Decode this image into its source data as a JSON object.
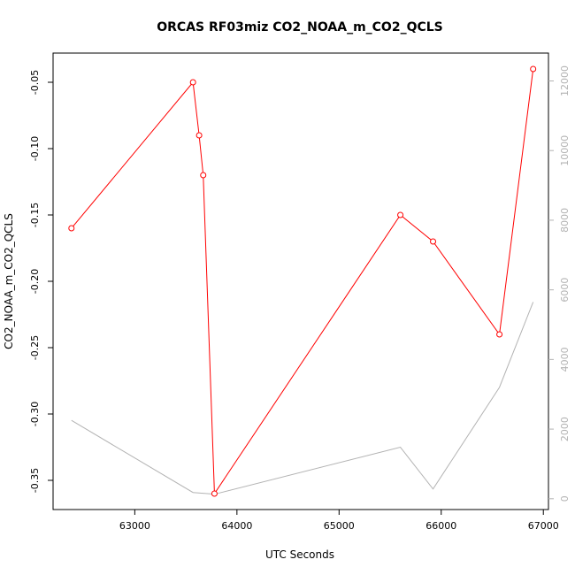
{
  "chart_data": {
    "type": "line",
    "title": "ORCAS RF03miz CO2_NOAA_m_CO2_QCLS",
    "xlabel": "UTC Seconds",
    "ylabel": "CO2_NOAA_m_CO2_QCLS",
    "xlim": [
      62200,
      67050
    ],
    "ylim": [
      -0.372,
      -0.028
    ],
    "y2lim": [
      -310,
      12800
    ],
    "x_ticks": [
      63000,
      64000,
      65000,
      66000,
      67000
    ],
    "y_ticks": [
      -0.35,
      -0.3,
      -0.25,
      -0.2,
      -0.15,
      -0.1,
      -0.05
    ],
    "y_tick_labels": [
      "-0.35",
      "-0.30",
      "-0.25",
      "-0.20",
      "-0.15",
      "-0.10",
      "-0.05"
    ],
    "y2_ticks": [
      0,
      2000,
      4000,
      6000,
      8000,
      10000,
      12000
    ],
    "grid": false,
    "series": [
      {
        "axis": "left",
        "color": "#ff0000",
        "marker": "open-circle",
        "x": [
          62380,
          63570,
          63630,
          63670,
          63780,
          65600,
          65920,
          66570,
          66900
        ],
        "y": [
          -0.16,
          -0.05,
          -0.09,
          -0.12,
          -0.36,
          -0.15,
          -0.17,
          -0.24,
          -0.04
        ]
      },
      {
        "axis": "right",
        "color": "#b3b3b3",
        "marker": "none",
        "x": [
          62380,
          63570,
          63780,
          65600,
          65920,
          66570,
          66900
        ],
        "y": [
          2250,
          180,
          130,
          1480,
          280,
          3200,
          5650
        ]
      }
    ]
  }
}
